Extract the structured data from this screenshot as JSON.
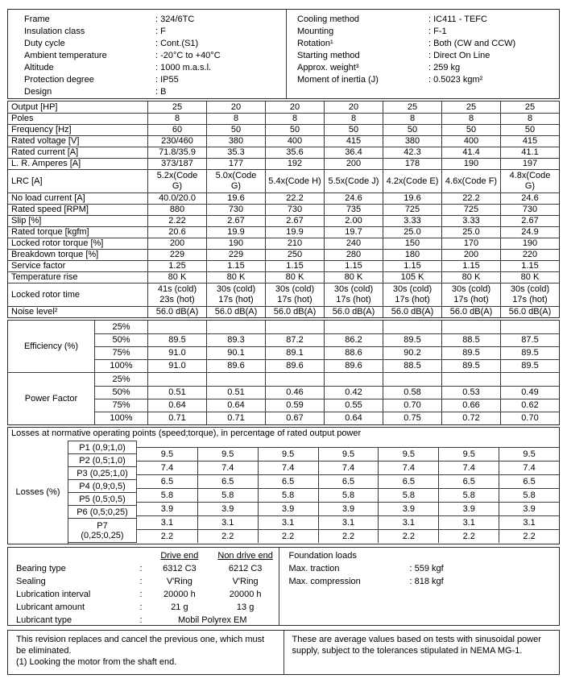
{
  "colors": {
    "text": "#000000",
    "border": "#3c3c3c",
    "background": "#ffffff"
  },
  "info_left": {
    "rows": [
      {
        "label": "Frame",
        "value": ": 324/6TC"
      },
      {
        "label": "Insulation class",
        "value": ": F"
      },
      {
        "label": "Duty cycle",
        "value": ": Cont.(S1)"
      },
      {
        "label": "Ambient temperature",
        "value": ": -20°C to +40°C"
      },
      {
        "label": "Altitude",
        "value": ": 1000 m.a.s.l."
      },
      {
        "label": "Protection degree",
        "value": ": IP55"
      },
      {
        "label": "Design",
        "value": ": B"
      }
    ]
  },
  "info_right": {
    "rows": [
      {
        "label": "Cooling method",
        "value": ": IC411 - TEFC"
      },
      {
        "label": "Mounting",
        "value": ": F-1"
      },
      {
        "label": "Rotation¹",
        "value": ": Both (CW and CCW)"
      },
      {
        "label": "Starting method",
        "value": ": Direct On Line"
      },
      {
        "label": "Approx. weight³",
        "value": ": 259 kg"
      },
      {
        "label": "Moment of inertia (J)",
        "value": ": 0.5023 kgm²"
      }
    ]
  },
  "main_table": {
    "rows": [
      {
        "label": "Output [HP]",
        "values": [
          "25",
          "20",
          "20",
          "20",
          "25",
          "25",
          "25"
        ]
      },
      {
        "label": "Poles",
        "values": [
          "8",
          "8",
          "8",
          "8",
          "8",
          "8",
          "8"
        ]
      },
      {
        "label": "Frequency [Hz]",
        "values": [
          "60",
          "50",
          "50",
          "50",
          "50",
          "50",
          "50"
        ]
      },
      {
        "label": "Rated voltage [V]",
        "values": [
          "230/460",
          "380",
          "400",
          "415",
          "380",
          "400",
          "415"
        ]
      },
      {
        "label": "Rated current [A]",
        "values": [
          "71.8/35.9",
          "35.3",
          "35.6",
          "36.4",
          "42.3",
          "41.4",
          "41.1"
        ]
      },
      {
        "label": "L. R. Amperes [A]",
        "values": [
          "373/187",
          "177",
          "192",
          "200",
          "178",
          "190",
          "197"
        ]
      },
      {
        "label": "LRC [A]",
        "tall": true,
        "values": [
          "5.2x(Code\nG)",
          "5.0x(Code\nG)",
          "5.4x(Code H)",
          "5.5x(Code J)",
          "4.2x(Code E)",
          "4.6x(Code F)",
          "4.8x(Code\nG)"
        ]
      },
      {
        "label": "No load current [A]",
        "values": [
          "40.0/20.0",
          "19.6",
          "22.2",
          "24.6",
          "19.6",
          "22.2",
          "24.6"
        ]
      },
      {
        "label": "Rated speed [RPM]",
        "values": [
          "880",
          "730",
          "730",
          "735",
          "725",
          "725",
          "730"
        ]
      },
      {
        "label": "Slip [%]",
        "values": [
          "2.22",
          "2.67",
          "2.67",
          "2.00",
          "3.33",
          "3.33",
          "2.67"
        ]
      },
      {
        "label": "Rated torque [kgfm]",
        "values": [
          "20.6",
          "19.9",
          "19.9",
          "19.7",
          "25.0",
          "25.0",
          "24.9"
        ]
      },
      {
        "label": "Locked rotor torque [%]",
        "values": [
          "200",
          "190",
          "210",
          "240",
          "150",
          "170",
          "190"
        ]
      },
      {
        "label": "Breakdown torque [%]",
        "values": [
          "229",
          "229",
          "250",
          "280",
          "180",
          "200",
          "220"
        ]
      },
      {
        "label": "Service factor",
        "values": [
          "1.25",
          "1.15",
          "1.15",
          "1.15",
          "1.15",
          "1.15",
          "1.15"
        ]
      },
      {
        "label": "Temperature rise",
        "values": [
          "80 K",
          "80 K",
          "80 K",
          "80 K",
          "105 K",
          "80 K",
          "80 K"
        ]
      },
      {
        "label": "Locked rotor time",
        "tall": true,
        "values": [
          "41s (cold)\n23s (hot)",
          "30s (cold)\n17s (hot)",
          "30s (cold)\n17s (hot)",
          "30s (cold)\n17s (hot)",
          "30s (cold)\n17s (hot)",
          "30s (cold)\n17s (hot)",
          "30s (cold)\n17s (hot)"
        ]
      },
      {
        "label": "Noise level²",
        "values": [
          "56.0 dB(A)",
          "56.0 dB(A)",
          "56.0 dB(A)",
          "56.0 dB(A)",
          "56.0 dB(A)",
          "56.0 dB(A)",
          "56.0 dB(A)"
        ]
      }
    ]
  },
  "efficiency": {
    "label": "Efficiency (%)",
    "rows": [
      {
        "pct": "25%",
        "values": [
          "",
          "",
          "",
          "",
          "",
          "",
          ""
        ]
      },
      {
        "pct": "50%",
        "values": [
          "89.5",
          "89.3",
          "87.2",
          "86.2",
          "89.5",
          "88.5",
          "87.5"
        ]
      },
      {
        "pct": "75%",
        "values": [
          "91.0",
          "90.1",
          "89.1",
          "88.6",
          "90.2",
          "89.5",
          "89.5"
        ]
      },
      {
        "pct": "100%",
        "values": [
          "91.0",
          "89.6",
          "89.6",
          "89.6",
          "88.5",
          "89.5",
          "89.5"
        ]
      }
    ]
  },
  "power_factor": {
    "label": "Power Factor",
    "rows": [
      {
        "pct": "25%",
        "values": [
          "",
          "",
          "",
          "",
          "",
          "",
          ""
        ]
      },
      {
        "pct": "50%",
        "values": [
          "0.51",
          "0.51",
          "0.46",
          "0.42",
          "0.58",
          "0.53",
          "0.49"
        ]
      },
      {
        "pct": "75%",
        "values": [
          "0.64",
          "0.64",
          "0.59",
          "0.55",
          "0.70",
          "0.66",
          "0.62"
        ]
      },
      {
        "pct": "100%",
        "values": [
          "0.71",
          "0.71",
          "0.67",
          "0.64",
          "0.75",
          "0.72",
          "0.70"
        ]
      }
    ]
  },
  "losses": {
    "header": "Losses at normative operating points (speed;torque), in percentage of rated output power",
    "label": "Losses (%)",
    "rows": [
      {
        "point": "P1 (0,9;1,0)",
        "values": [
          "9.5",
          "9.5",
          "9.5",
          "9.5",
          "9.5",
          "9.5",
          "9.5"
        ]
      },
      {
        "point": "P2 (0,5;1,0)",
        "values": [
          "7.4",
          "7.4",
          "7.4",
          "7.4",
          "7.4",
          "7.4",
          "7.4"
        ]
      },
      {
        "point": "P3 (0,25;1,0)",
        "values": [
          "6.5",
          "6.5",
          "6.5",
          "6.5",
          "6.5",
          "6.5",
          "6.5"
        ]
      },
      {
        "point": "P4 (0,9;0,5)",
        "values": [
          "5.8",
          "5.8",
          "5.8",
          "5.8",
          "5.8",
          "5.8",
          "5.8"
        ]
      },
      {
        "point": "P5 (0,5;0,5)",
        "values": [
          "3.9",
          "3.9",
          "3.9",
          "3.9",
          "3.9",
          "3.9",
          "3.9"
        ]
      },
      {
        "point": "P6 (0,5;0,25)",
        "values": [
          "3.1",
          "3.1",
          "3.1",
          "3.1",
          "3.1",
          "3.1",
          "3.1"
        ]
      },
      {
        "point": "P7\n(0,25;0,25)",
        "values": [
          "2.2",
          "2.2",
          "2.2",
          "2.2",
          "2.2",
          "2.2",
          "2.2"
        ]
      }
    ]
  },
  "bearings": {
    "colon_separator": ":",
    "headers": [
      "Drive end",
      "Non drive end"
    ],
    "rows": [
      {
        "label": "Bearing type",
        "drive_end": "6312 C3",
        "non_drive_end": "6212 C3"
      },
      {
        "label": "Sealing",
        "drive_end": "V'Ring",
        "non_drive_end": "V'Ring"
      },
      {
        "label": "Lubrication interval",
        "drive_end": "20000 h",
        "non_drive_end": "20000 h"
      },
      {
        "label": "Lubricant amount",
        "drive_end": "21 g",
        "non_drive_end": "13 g"
      }
    ],
    "span_row": {
      "label": "Lubricant type",
      "value": "Mobil Polyrex EM"
    }
  },
  "foundation": {
    "title": "Foundation loads",
    "rows": [
      {
        "label": "Max. traction",
        "value": ": 559 kgf"
      },
      {
        "label": "Max. compression",
        "value": ": 818 kgf"
      }
    ]
  },
  "notes": {
    "left": [
      "This revision replaces and cancel the previous one, which must be eliminated.",
      "(1) Looking the motor from the shaft end."
    ],
    "right": [
      "These are average values based on tests with sinusoidal power supply, subject to the tolerances stipulated in NEMA MG-1."
    ]
  }
}
